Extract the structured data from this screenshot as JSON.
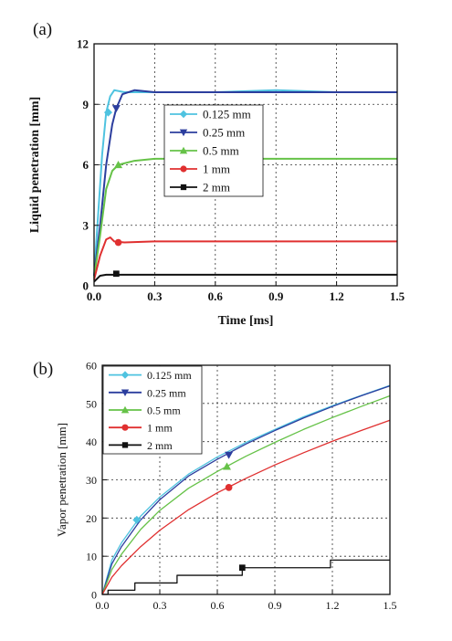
{
  "chart_data": [
    {
      "panel_label": "(a)",
      "type": "line",
      "xlabel": "Time [ms]",
      "ylabel": "Liquid penetration [mm]",
      "xlim": [
        0,
        1.5
      ],
      "ylim": [
        0,
        12
      ],
      "xticks": [
        "0.0",
        "0.3",
        "0.6",
        "0.9",
        "1.2",
        "1.5"
      ],
      "yticks": [
        "0",
        "3",
        "6",
        "9",
        "12"
      ],
      "grid": "dotted",
      "legend_position": "center",
      "series": [
        {
          "name": "0.125 mm",
          "color": "#4fc3e0",
          "marker": "diamond",
          "marker_at": [
            0.07,
            8.6
          ],
          "x": [
            0.0,
            0.02,
            0.04,
            0.06,
            0.08,
            0.1,
            0.15,
            0.3,
            0.6,
            0.9,
            1.2,
            1.5
          ],
          "y": [
            0.5,
            3.5,
            6.5,
            8.6,
            9.4,
            9.7,
            9.6,
            9.6,
            9.6,
            9.7,
            9.6,
            9.6
          ]
        },
        {
          "name": "0.25 mm",
          "color": "#2c3e9e",
          "marker": "triangle-down",
          "marker_at": [
            0.11,
            8.8
          ],
          "x": [
            0.0,
            0.03,
            0.06,
            0.09,
            0.11,
            0.14,
            0.2,
            0.3,
            0.6,
            0.9,
            1.2,
            1.5
          ],
          "y": [
            0.5,
            3.0,
            6.0,
            8.0,
            8.8,
            9.5,
            9.7,
            9.6,
            9.6,
            9.6,
            9.6,
            9.6
          ]
        },
        {
          "name": "0.5 mm",
          "color": "#66c248",
          "marker": "triangle-up",
          "marker_at": [
            0.12,
            6.0
          ],
          "x": [
            0.0,
            0.03,
            0.06,
            0.09,
            0.12,
            0.2,
            0.3,
            0.6,
            0.9,
            1.2,
            1.5
          ],
          "y": [
            0.4,
            2.5,
            4.8,
            5.7,
            6.0,
            6.2,
            6.3,
            6.3,
            6.3,
            6.3,
            6.3
          ]
        },
        {
          "name": "1 mm",
          "color": "#e03030",
          "marker": "circle",
          "marker_at": [
            0.12,
            2.15
          ],
          "x": [
            0.0,
            0.03,
            0.06,
            0.08,
            0.1,
            0.15,
            0.3,
            0.6,
            0.9,
            1.2,
            1.5
          ],
          "y": [
            0.3,
            1.5,
            2.3,
            2.4,
            2.2,
            2.15,
            2.2,
            2.2,
            2.2,
            2.2,
            2.2
          ]
        },
        {
          "name": "2 mm",
          "color": "#111111",
          "marker": "square",
          "marker_at": [
            0.11,
            0.6
          ],
          "x": [
            0.0,
            0.03,
            0.06,
            0.1,
            0.3,
            0.6,
            0.9,
            1.2,
            1.5
          ],
          "y": [
            0.2,
            0.5,
            0.55,
            0.55,
            0.55,
            0.55,
            0.55,
            0.55,
            0.55
          ]
        }
      ]
    },
    {
      "panel_label": "(b)",
      "type": "line",
      "xlabel": "",
      "ylabel": "Vapor penetration [mm]",
      "xlim": [
        0,
        1.5
      ],
      "ylim": [
        0,
        60
      ],
      "xticks": [
        "0.0",
        "0.3",
        "0.6",
        "0.9",
        "1.2",
        "1.5"
      ],
      "yticks": [
        "0",
        "10",
        "20",
        "30",
        "40",
        "50",
        "60"
      ],
      "grid": "dotted",
      "legend_position": "top-left",
      "series": [
        {
          "name": "0.125 mm",
          "color": "#4fc3e0",
          "marker": "diamond",
          "marker_at": [
            0.18,
            19.5
          ],
          "x": [
            0.0,
            0.05,
            0.1,
            0.2,
            0.3,
            0.45,
            0.6,
            0.75,
            0.9,
            1.05,
            1.2,
            1.35,
            1.5
          ],
          "y": [
            0,
            9,
            13.5,
            20.5,
            25.5,
            31.5,
            36,
            39.8,
            43.2,
            46.5,
            49.4,
            52.1,
            54.7
          ]
        },
        {
          "name": "0.25 mm",
          "color": "#2c3e9e",
          "marker": "triangle-down",
          "marker_at": [
            0.66,
            36.5
          ],
          "x": [
            0.0,
            0.05,
            0.1,
            0.2,
            0.3,
            0.45,
            0.6,
            0.75,
            0.9,
            1.05,
            1.2,
            1.35,
            1.5
          ],
          "y": [
            0,
            8,
            12.5,
            19.5,
            24.8,
            31,
            35.4,
            39.4,
            42.9,
            46.2,
            49.2,
            52,
            54.6
          ]
        },
        {
          "name": "0.5 mm",
          "color": "#66c248",
          "marker": "triangle-up",
          "marker_at": [
            0.65,
            33.5
          ],
          "x": [
            0.0,
            0.05,
            0.1,
            0.2,
            0.3,
            0.45,
            0.6,
            0.75,
            0.9,
            1.05,
            1.2,
            1.35,
            1.5
          ],
          "y": [
            0,
            6.5,
            10.5,
            17,
            22,
            27.8,
            32.2,
            36.2,
            39.8,
            43.2,
            46.3,
            49.2,
            52
          ]
        },
        {
          "name": "1 mm",
          "color": "#e03030",
          "marker": "circle",
          "marker_at": [
            0.66,
            28
          ],
          "x": [
            0.0,
            0.05,
            0.1,
            0.2,
            0.3,
            0.45,
            0.6,
            0.75,
            0.9,
            1.05,
            1.2,
            1.35,
            1.5
          ],
          "y": [
            0,
            4.5,
            7.5,
            12.5,
            16.8,
            22.2,
            26.6,
            30.4,
            33.9,
            37.1,
            40.1,
            42.9,
            45.6
          ]
        },
        {
          "name": "2 mm",
          "color": "#111111",
          "marker": "square",
          "marker_at": [
            0.73,
            7
          ],
          "x": [
            0.0,
            0.03,
            0.03,
            0.17,
            0.17,
            0.39,
            0.39,
            0.73,
            0.73,
            1.19,
            1.19,
            1.5
          ],
          "y": [
            0,
            0,
            1.1,
            1.1,
            3.0,
            3.0,
            5.0,
            5.0,
            7.0,
            7.0,
            9.0,
            9.0
          ]
        }
      ]
    }
  ]
}
